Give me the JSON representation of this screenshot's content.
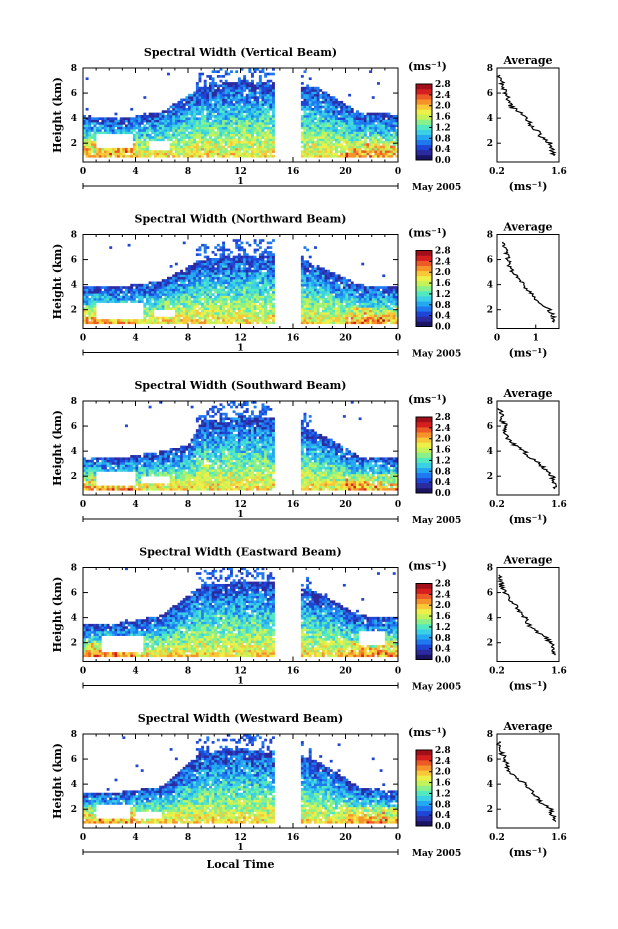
{
  "figure": {
    "xlabel": "Local Time",
    "ylabel": "Height (km)",
    "date_label": "May 2005",
    "day_label": "1",
    "avg_title": "Average",
    "unit_label": "(ms⁻¹)"
  },
  "colormap": [
    "#1b1464",
    "#2b2a9e",
    "#1f45d6",
    "#1e78f0",
    "#25a8f2",
    "#3ad0e6",
    "#52e8c0",
    "#8af08a",
    "#c4f25a",
    "#eef04a",
    "#f8c838",
    "#f5922a",
    "#ee5a26",
    "#d61e1e",
    "#a30f18"
  ],
  "chart_data": [
    {
      "type": "heatmap",
      "title": "Spectral Width (Vertical Beam)",
      "x_ticks": [
        "0",
        "4",
        "8",
        "12",
        "16",
        "20",
        "0"
      ],
      "xlim": [
        0,
        24
      ],
      "y_ticks": [
        "2",
        "4",
        "6",
        "8"
      ],
      "ylim": [
        0.5,
        8
      ],
      "colorbar_ticks": [
        "0.0",
        "0.4",
        "0.8",
        "1.2",
        "1.6",
        "2.0",
        "2.4",
        "2.8"
      ],
      "colorbar_range": [
        0,
        2.8
      ],
      "gaps": [
        [
          14.6,
          14.9
        ],
        [
          15.1,
          16.6
        ]
      ],
      "top_envelope_km": [
        [
          0,
          4.2
        ],
        [
          3,
          4.0
        ],
        [
          6,
          4.5
        ],
        [
          9,
          6.5
        ],
        [
          12,
          7.0
        ],
        [
          15,
          6.8
        ],
        [
          18,
          6.4
        ],
        [
          21,
          4.5
        ],
        [
          24,
          4.3
        ]
      ],
      "hole_regions": [
        [
          1.0,
          3.8,
          1.6,
          2.8
        ],
        [
          5.0,
          6.5,
          1.5,
          2.2
        ]
      ],
      "average_profile": {
        "title": "Average",
        "x_ticks": [
          "0.2",
          "1.6"
        ],
        "xlim": [
          0.2,
          1.6
        ],
        "y_ticks": [
          "2",
          "4",
          "6",
          "8"
        ],
        "ylim": [
          0.5,
          8
        ],
        "height_km": [
          1,
          1.5,
          2,
          2.5,
          3,
          3.5,
          4,
          4.5,
          5,
          5.5,
          6,
          6.5,
          7,
          7.5
        ],
        "width_ms": [
          1.5,
          1.45,
          1.4,
          1.2,
          1.1,
          0.95,
          0.85,
          0.7,
          0.5,
          0.45,
          0.4,
          0.35,
          0.3,
          0.25
        ]
      }
    },
    {
      "type": "heatmap",
      "title": "Spectral Width (Northward Beam)",
      "x_ticks": [
        "0",
        "4",
        "8",
        "12",
        "16",
        "20",
        "0"
      ],
      "xlim": [
        0,
        24
      ],
      "y_ticks": [
        "2",
        "4",
        "6",
        "8"
      ],
      "ylim": [
        0.5,
        8
      ],
      "colorbar_ticks": [
        "0.0",
        "0.4",
        "0.8",
        "1.2",
        "1.6",
        "2.0",
        "2.4",
        "2.8"
      ],
      "colorbar_range": [
        0,
        2.8
      ],
      "gaps": [
        [
          14.6,
          14.9
        ],
        [
          15.1,
          16.6
        ]
      ],
      "top_envelope_km": [
        [
          0,
          3.8
        ],
        [
          3,
          3.9
        ],
        [
          6,
          4.3
        ],
        [
          9,
          6.0
        ],
        [
          12,
          6.4
        ],
        [
          15,
          6.4
        ],
        [
          18,
          5.5
        ],
        [
          21,
          4.0
        ],
        [
          24,
          3.8
        ]
      ],
      "hole_regions": [
        [
          1.0,
          4.5,
          1.2,
          2.6
        ],
        [
          5.5,
          7.0,
          1.5,
          2.0
        ]
      ],
      "average_profile": {
        "title": "Average",
        "x_ticks": [
          "0",
          "1"
        ],
        "xlim": [
          0,
          1.6
        ],
        "y_ticks": [
          "2",
          "4",
          "6",
          "8"
        ],
        "ylim": [
          0.5,
          8
        ],
        "height_km": [
          1,
          1.5,
          2,
          2.5,
          3,
          3.5,
          4,
          4.5,
          5,
          5.5,
          6,
          6.5,
          7,
          7.5
        ],
        "width_ms": [
          1.5,
          1.45,
          1.35,
          1.1,
          0.95,
          0.8,
          0.7,
          0.55,
          0.4,
          0.3,
          0.3,
          0.25,
          0.2,
          0.2
        ]
      }
    },
    {
      "type": "heatmap",
      "title": "Spectral Width (Southward Beam)",
      "x_ticks": [
        "0",
        "4",
        "8",
        "12",
        "16",
        "20",
        "0"
      ],
      "xlim": [
        0,
        24
      ],
      "y_ticks": [
        "2",
        "4",
        "6",
        "8"
      ],
      "ylim": [
        0.5,
        8
      ],
      "colorbar_ticks": [
        "0.0",
        "0.4",
        "0.8",
        "1.2",
        "1.6",
        "2.0",
        "2.4",
        "2.8"
      ],
      "colorbar_range": [
        0,
        2.8
      ],
      "gaps": [
        [
          14.6,
          14.9
        ],
        [
          15.1,
          16.6
        ]
      ],
      "top_envelope_km": [
        [
          0,
          3.5
        ],
        [
          3,
          3.5
        ],
        [
          6,
          4.0
        ],
        [
          8,
          4.5
        ],
        [
          9,
          6.4
        ],
        [
          12,
          6.8
        ],
        [
          15,
          6.6
        ],
        [
          18,
          5.5
        ],
        [
          21,
          3.6
        ],
        [
          24,
          3.4
        ]
      ],
      "hole_regions": [
        [
          1.0,
          4.0,
          1.2,
          2.4
        ],
        [
          4.5,
          6.5,
          1.4,
          2.0
        ]
      ],
      "average_profile": {
        "title": "Average",
        "x_ticks": [
          "0.2",
          "1.6"
        ],
        "xlim": [
          0.2,
          1.6
        ],
        "y_ticks": [
          "2",
          "4",
          "6",
          "8"
        ],
        "ylim": [
          0.5,
          8
        ],
        "height_km": [
          1,
          1.5,
          2,
          2.5,
          3,
          3.5,
          4,
          4.5,
          5,
          5.5,
          6,
          6.5,
          7,
          7.5
        ],
        "width_ms": [
          1.5,
          1.5,
          1.45,
          1.3,
          1.15,
          0.95,
          0.8,
          0.6,
          0.45,
          0.4,
          0.4,
          0.3,
          0.3,
          0.25
        ]
      }
    },
    {
      "type": "heatmap",
      "title": "Spectral Width (Eastward Beam)",
      "x_ticks": [
        "0",
        "4",
        "8",
        "12",
        "16",
        "20",
        "0"
      ],
      "xlim": [
        0,
        24
      ],
      "y_ticks": [
        "2",
        "4",
        "6",
        "8"
      ],
      "ylim": [
        0.5,
        8
      ],
      "colorbar_ticks": [
        "0.0",
        "0.4",
        "0.8",
        "1.2",
        "1.6",
        "2.0",
        "2.4",
        "2.8"
      ],
      "colorbar_range": [
        0,
        2.8
      ],
      "gaps": [
        [
          14.6,
          14.9
        ],
        [
          15.1,
          16.6
        ]
      ],
      "top_envelope_km": [
        [
          0,
          3.5
        ],
        [
          3,
          3.6
        ],
        [
          6,
          4.2
        ],
        [
          9,
          6.6
        ],
        [
          12,
          6.8
        ],
        [
          15,
          6.8
        ],
        [
          18,
          6.0
        ],
        [
          21,
          4.2
        ],
        [
          24,
          4.0
        ]
      ],
      "hole_regions": [
        [
          1.5,
          4.5,
          1.3,
          2.6
        ],
        [
          21,
          23,
          1.8,
          3.0
        ]
      ],
      "average_profile": {
        "title": "Average",
        "x_ticks": [
          "0.2",
          "1.6"
        ],
        "xlim": [
          0.2,
          1.6
        ],
        "y_ticks": [
          "2",
          "4",
          "6",
          "8"
        ],
        "ylim": [
          0.5,
          8
        ],
        "height_km": [
          1,
          1.5,
          2,
          2.5,
          3,
          3.5,
          4,
          4.5,
          5,
          5.5,
          6,
          6.5,
          7,
          7.5
        ],
        "width_ms": [
          1.5,
          1.5,
          1.4,
          1.3,
          1.05,
          0.9,
          0.85,
          0.7,
          0.6,
          0.45,
          0.4,
          0.3,
          0.3,
          0.25
        ]
      }
    },
    {
      "type": "heatmap",
      "title": "Spectral Width (Westward Beam)",
      "x_ticks": [
        "0",
        "4",
        "8",
        "12",
        "16",
        "20",
        "0"
      ],
      "xlim": [
        0,
        24
      ],
      "y_ticks": [
        "2",
        "4",
        "6",
        "8"
      ],
      "ylim": [
        0.5,
        8
      ],
      "colorbar_ticks": [
        "0.0",
        "0.4",
        "0.8",
        "1.2",
        "1.6",
        "2.0",
        "2.4",
        "2.8"
      ],
      "colorbar_range": [
        0,
        2.8
      ],
      "gaps": [
        [
          14.6,
          14.9
        ],
        [
          15.1,
          16.6
        ]
      ],
      "top_envelope_km": [
        [
          0,
          3.3
        ],
        [
          3,
          3.4
        ],
        [
          6,
          3.8
        ],
        [
          9,
          6.5
        ],
        [
          12,
          6.8
        ],
        [
          15,
          6.6
        ],
        [
          18,
          5.8
        ],
        [
          21,
          3.8
        ],
        [
          24,
          3.4
        ]
      ],
      "hole_regions": [
        [
          1.0,
          3.5,
          1.2,
          2.3
        ],
        [
          4.0,
          6.0,
          1.3,
          1.8
        ]
      ],
      "average_profile": {
        "title": "Average",
        "x_ticks": [
          "0.2",
          "1.6"
        ],
        "xlim": [
          0.2,
          1.6
        ],
        "y_ticks": [
          "2",
          "4",
          "6",
          "8"
        ],
        "ylim": [
          0.5,
          8
        ],
        "height_km": [
          1,
          1.5,
          2,
          2.5,
          3,
          3.5,
          4,
          4.5,
          5,
          5.5,
          6,
          6.5,
          7,
          7.5
        ],
        "width_ms": [
          1.5,
          1.45,
          1.4,
          1.2,
          1.1,
          0.95,
          0.85,
          0.65,
          0.5,
          0.4,
          0.4,
          0.3,
          0.25,
          0.2
        ]
      }
    }
  ]
}
